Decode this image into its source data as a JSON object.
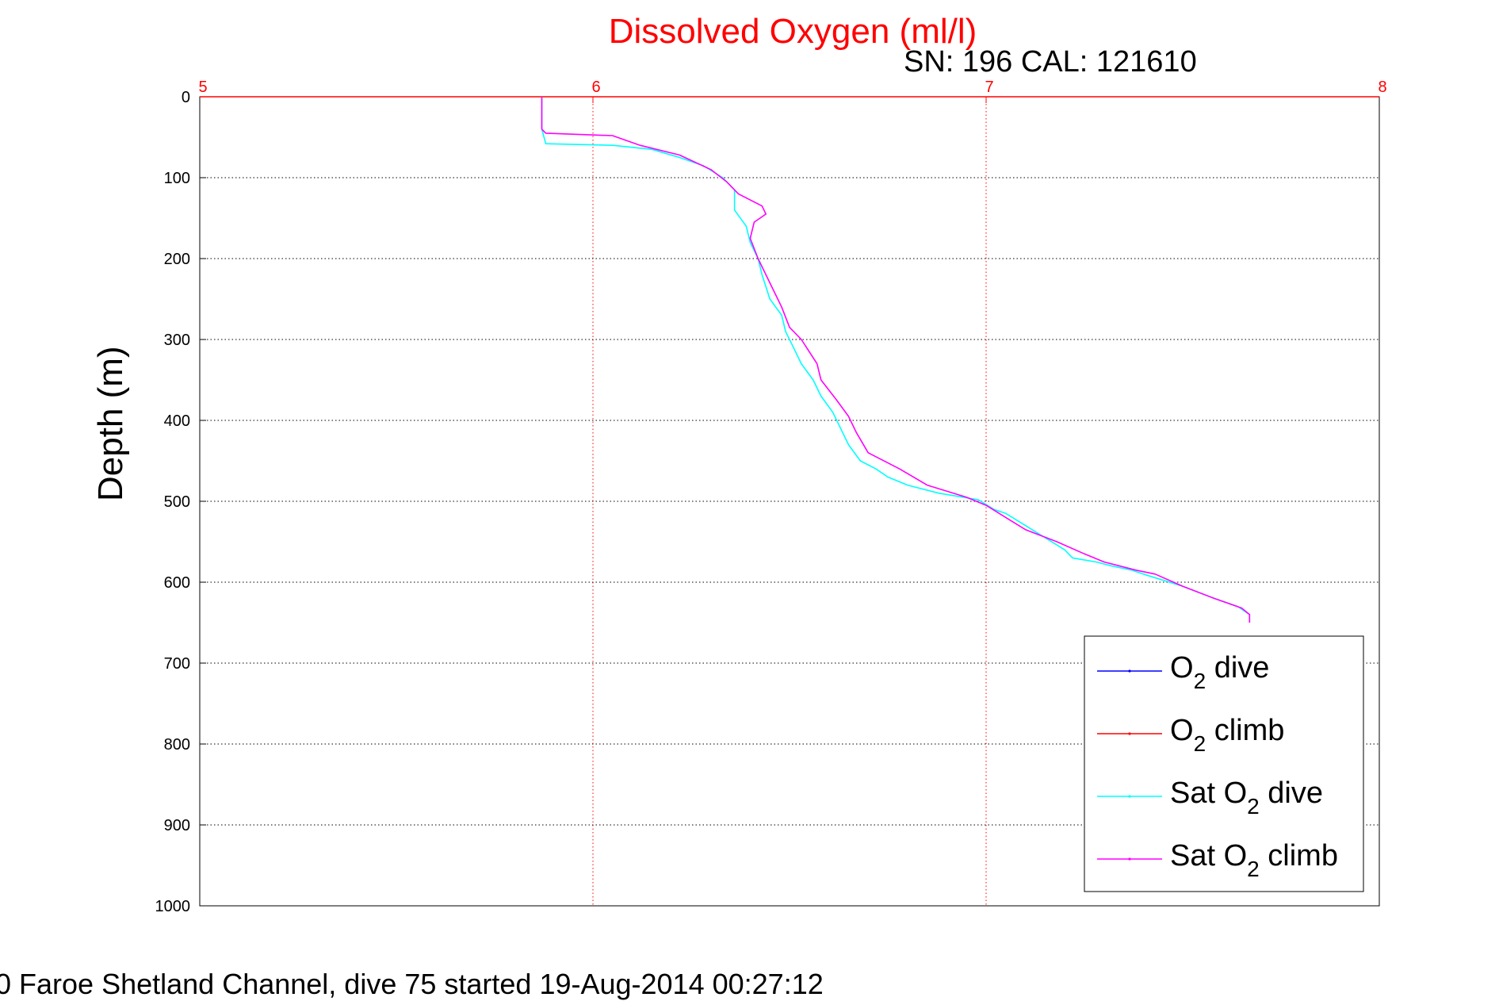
{
  "chart_data": {
    "type": "line",
    "title": "Dissolved Oxygen (ml/l)",
    "subtitle": "SN: 196  CAL: 121610",
    "ylabel": "Depth (m)",
    "xlim": [
      5,
      8
    ],
    "ylim": [
      0,
      1000
    ],
    "y_reversed": true,
    "x_ticks": [
      "5",
      "6",
      "7",
      "8"
    ],
    "y_ticks": [
      "0",
      "100",
      "200",
      "300",
      "400",
      "500",
      "600",
      "700",
      "800",
      "900",
      "1000"
    ],
    "grid": true,
    "legend_position": "lower-right",
    "footer": "0 Faroe Shetland Channel, dive 75 started 19-Aug-2014 00:27:12",
    "colors": {
      "title": "#ff0000",
      "x_axis": "#ff0000",
      "grid_x": "#ff0000",
      "grid_y": "#000000"
    },
    "series": [
      {
        "legend": {
          "base": "O",
          "sub": "2",
          "rest": " dive"
        },
        "color": "#0000ff",
        "x": [],
        "y": []
      },
      {
        "legend": {
          "base": "O",
          "sub": "2",
          "rest": " climb"
        },
        "color": "#ff0000",
        "x": [],
        "y": []
      },
      {
        "legend": {
          "base": "Sat O",
          "sub": "2",
          "rest": " dive"
        },
        "color": "#00ffff",
        "x": [
          5.87,
          5.87,
          5.87,
          5.88,
          6.05,
          6.15,
          6.22,
          6.28,
          6.33,
          6.36,
          6.36,
          6.39,
          6.4,
          6.42,
          6.43,
          6.45,
          6.48,
          6.49,
          6.51,
          6.53,
          6.56,
          6.58,
          6.61,
          6.63,
          6.65,
          6.68,
          6.72,
          6.75,
          6.8,
          6.88,
          6.98,
          7.02,
          7.05,
          7.1,
          7.15,
          7.2,
          7.22,
          7.28,
          7.32,
          7.37,
          7.4,
          7.5,
          7.58,
          7.64,
          7.67,
          7.67
        ],
        "y": [
          0,
          20,
          40,
          58,
          60,
          65,
          75,
          85,
          100,
          115,
          140,
          160,
          180,
          200,
          220,
          250,
          270,
          290,
          310,
          330,
          350,
          370,
          390,
          410,
          430,
          450,
          460,
          470,
          480,
          490,
          498,
          510,
          515,
          530,
          545,
          560,
          570,
          575,
          580,
          585,
          590,
          605,
          620,
          630,
          640,
          650
        ]
      },
      {
        "legend": {
          "base": "Sat O",
          "sub": "2",
          "rest": " climb"
        },
        "color": "#ff00ff",
        "x": [
          5.87,
          5.87,
          5.87,
          5.88,
          6.05,
          6.12,
          6.22,
          6.3,
          6.34,
          6.37,
          6.43,
          6.44,
          6.41,
          6.4,
          6.42,
          6.45,
          6.48,
          6.5,
          6.53,
          6.57,
          6.58,
          6.62,
          6.65,
          6.67,
          6.7,
          6.78,
          6.85,
          6.95,
          7.0,
          7.05,
          7.1,
          7.18,
          7.25,
          7.3,
          7.38,
          7.43,
          7.5,
          7.58,
          7.65,
          7.67,
          7.67
        ],
        "y": [
          0,
          20,
          40,
          45,
          48,
          60,
          72,
          90,
          105,
          120,
          135,
          145,
          155,
          175,
          200,
          230,
          260,
          285,
          300,
          330,
          350,
          375,
          395,
          415,
          440,
          460,
          480,
          495,
          505,
          520,
          535,
          550,
          565,
          575,
          585,
          590,
          605,
          620,
          632,
          640,
          650
        ]
      }
    ]
  }
}
